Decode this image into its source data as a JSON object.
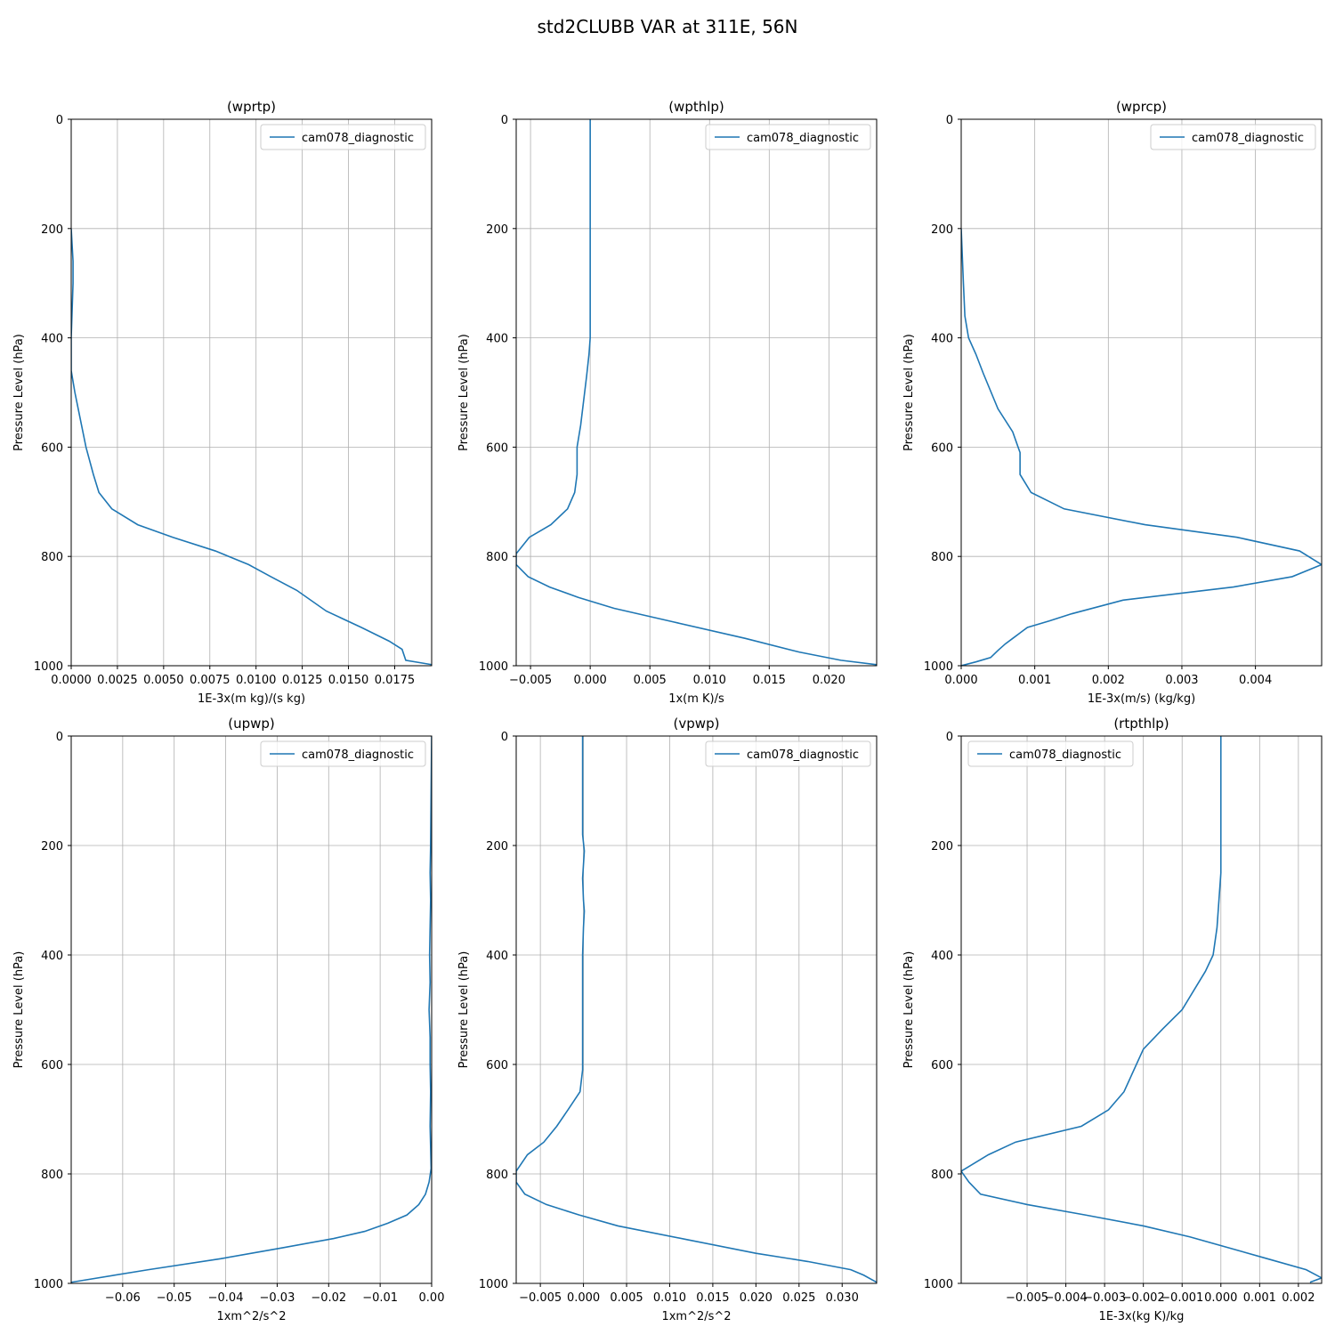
{
  "figure_title": "std2CLUBB VAR at 311E, 56N",
  "series_color": "#1f77b4",
  "chart_data": [
    {
      "type": "line",
      "title": "(wprtp)",
      "xlabel": "1E-3x(m kg)/(s kg)",
      "ylabel": "Pressure Level (hPa)",
      "xlim": [
        0.0,
        0.0195
      ],
      "ylim": [
        1000,
        0
      ],
      "xticks": [
        0.0,
        0.0025,
        0.005,
        0.0075,
        0.01,
        0.0125,
        0.015,
        0.0175
      ],
      "xtick_labels": [
        "0.0000",
        "0.0025",
        "0.0050",
        "0.0075",
        "0.0100",
        "0.0125",
        "0.0150",
        "0.0175"
      ],
      "yticks": [
        0,
        200,
        400,
        600,
        800,
        1000
      ],
      "ytick_labels": [
        "0",
        "200",
        "400",
        "600",
        "800",
        "1000"
      ],
      "grid": true,
      "legend_loc": "upper-right",
      "series": [
        {
          "name": "cam078_diagnostic",
          "x": [
            0.0,
            0.0001,
            0.0001,
            0.0,
            0.0,
            0.0002,
            0.0005,
            0.0008,
            0.0012,
            0.0015,
            0.0022,
            0.0036,
            0.0055,
            0.0078,
            0.0096,
            0.0108,
            0.0122,
            0.0138,
            0.0157,
            0.0172,
            0.0179,
            0.0181,
            0.0195
          ],
          "y": [
            200,
            260,
            300,
            400,
            460,
            500,
            550,
            600,
            650,
            683,
            713,
            742,
            765,
            790,
            815,
            837,
            862,
            900,
            930,
            955,
            970,
            990,
            998
          ]
        }
      ]
    },
    {
      "type": "line",
      "title": "(wpthlp)",
      "xlabel": "1x(m K)/s",
      "ylabel": "Pressure Level (hPa)",
      "xlim": [
        -0.0062,
        0.024
      ],
      "ylim": [
        1000,
        0
      ],
      "xticks": [
        -0.005,
        0.0,
        0.005,
        0.01,
        0.015,
        0.02
      ],
      "xtick_labels": [
        "−0.005",
        "0.000",
        "0.005",
        "0.010",
        "0.015",
        "0.020"
      ],
      "yticks": [
        0,
        200,
        400,
        600,
        800,
        1000
      ],
      "ytick_labels": [
        "0",
        "200",
        "400",
        "600",
        "800",
        "1000"
      ],
      "grid": true,
      "legend_loc": "upper-right",
      "series": [
        {
          "name": "cam078_diagnostic",
          "x": [
            0.0,
            0.0,
            0.0,
            0.0,
            -0.0001,
            -0.0003,
            -0.0008,
            -0.0011,
            -0.0011,
            -0.0013,
            -0.0019,
            -0.0033,
            -0.0051,
            -0.0062,
            -0.0062,
            -0.0052,
            -0.0034,
            -0.001,
            0.002,
            0.007,
            0.013,
            0.0175,
            0.021,
            0.024
          ],
          "y": [
            0,
            10,
            200,
            400,
            430,
            470,
            560,
            600,
            650,
            683,
            713,
            742,
            765,
            795,
            815,
            837,
            856,
            875,
            895,
            920,
            950,
            975,
            990,
            998
          ]
        }
      ]
    },
    {
      "type": "line",
      "title": "(wprcp)",
      "xlabel": "1E-3x(m/s) (kg/kg)",
      "ylabel": "Pressure Level (hPa)",
      "xlim": [
        0.0,
        0.0049
      ],
      "ylim": [
        1000,
        0
      ],
      "xticks": [
        0.0,
        0.001,
        0.002,
        0.003,
        0.004
      ],
      "xtick_labels": [
        "0.000",
        "0.001",
        "0.002",
        "0.003",
        "0.004"
      ],
      "yticks": [
        0,
        200,
        400,
        600,
        800,
        1000
      ],
      "ytick_labels": [
        "0",
        "200",
        "400",
        "600",
        "800",
        "1000"
      ],
      "grid": true,
      "legend_loc": "upper-right",
      "series": [
        {
          "name": "cam078_diagnostic",
          "x": [
            0.0,
            3e-05,
            5e-05,
            0.0001,
            0.0002,
            0.0003,
            0.0005,
            0.0007,
            0.0008,
            0.0008,
            0.00095,
            0.0014,
            0.0025,
            0.00375,
            0.0046,
            0.0049,
            0.0045,
            0.0037,
            0.0022,
            0.0015,
            0.0012,
            0.0009,
            0.0008,
            0.0007,
            0.0006,
            0.0005,
            0.0004,
            0.0002,
            0.0
          ],
          "y": [
            200,
            300,
            360,
            400,
            430,
            465,
            530,
            572,
            610,
            650,
            683,
            713,
            742,
            765,
            790,
            815,
            837,
            856,
            880,
            905,
            918,
            930,
            940,
            950,
            960,
            972,
            985,
            993,
            1000
          ]
        }
      ]
    },
    {
      "type": "line",
      "title": "(upwp)",
      "xlabel": "1xm^2/s^2",
      "ylabel": "Pressure Level (hPa)",
      "xlim": [
        -0.07,
        0.0
      ],
      "ylim": [
        1000,
        0
      ],
      "xticks": [
        -0.06,
        -0.05,
        -0.04,
        -0.03,
        -0.02,
        -0.01,
        0.0
      ],
      "xtick_labels": [
        "−0.06",
        "−0.05",
        "−0.04",
        "−0.03",
        "−0.02",
        "−0.01",
        "0.00"
      ],
      "yticks": [
        0,
        200,
        400,
        600,
        800,
        1000
      ],
      "ytick_labels": [
        "0",
        "200",
        "400",
        "600",
        "800",
        "1000"
      ],
      "grid": true,
      "legend_loc": "upper-right",
      "series": [
        {
          "name": "cam078_diagnostic",
          "x": [
            0.0,
            -0.0001,
            -0.0002,
            -0.0003,
            -0.0002,
            -0.0004,
            -0.0003,
            -0.0005,
            -0.0003,
            -0.0003,
            -0.0002,
            -0.0003,
            -0.0001,
            -0.0005,
            -0.0012,
            -0.0025,
            -0.0048,
            -0.0085,
            -0.013,
            -0.019,
            -0.029,
            -0.041,
            -0.055,
            -0.07
          ],
          "y": [
            0,
            100,
            200,
            250,
            300,
            400,
            450,
            500,
            550,
            600,
            650,
            713,
            790,
            815,
            837,
            856,
            875,
            890,
            905,
            918,
            935,
            955,
            975,
            998
          ]
        }
      ]
    },
    {
      "type": "line",
      "title": "(vpwp)",
      "xlabel": "1xm^2/s^2",
      "ylabel": "Pressure Level (hPa)",
      "xlim": [
        -0.0078,
        0.034
      ],
      "ylim": [
        1000,
        0
      ],
      "xticks": [
        -0.005,
        0.0,
        0.005,
        0.01,
        0.015,
        0.02,
        0.025,
        0.03
      ],
      "xtick_labels": [
        "−0.005",
        "0.000",
        "0.005",
        "0.010",
        "0.015",
        "0.020",
        "0.025",
        "0.030"
      ],
      "yticks": [
        0,
        200,
        400,
        600,
        800,
        1000
      ],
      "ytick_labels": [
        "0",
        "200",
        "400",
        "600",
        "800",
        "1000"
      ],
      "grid": true,
      "legend_loc": "upper-right",
      "series": [
        {
          "name": "cam078_diagnostic",
          "x": [
            -0.0001,
            -0.0001,
            -0.0001,
            0.0001,
            -0.0001,
            0.0,
            0.0001,
            0.0,
            -0.0001,
            -0.0001,
            -0.0001,
            -0.0001,
            -0.0004,
            -0.0018,
            -0.0031,
            -0.0046,
            -0.0065,
            -0.0078,
            -0.0078,
            -0.0068,
            -0.0043,
            -0.0005,
            0.004,
            0.012,
            0.02,
            0.026,
            0.031,
            0.0325,
            0.034
          ],
          "y": [
            0,
            100,
            180,
            210,
            260,
            300,
            320,
            350,
            400,
            500,
            575,
            610,
            650,
            683,
            713,
            742,
            765,
            795,
            815,
            837,
            856,
            875,
            895,
            920,
            945,
            960,
            975,
            985,
            998
          ]
        }
      ]
    },
    {
      "type": "line",
      "title": "(rtpthlp)",
      "xlabel": "1E-3x(kg K)/kg",
      "ylabel": "Pressure Level (hPa)",
      "xlim": [
        -0.0067,
        0.0026
      ],
      "ylim": [
        1000,
        0
      ],
      "xticks": [
        -0.005,
        -0.004,
        -0.003,
        -0.002,
        -0.001,
        0.0,
        0.001,
        0.002
      ],
      "xtick_labels": [
        "−0.005",
        "−0.004",
        "−0.003",
        "−0.002",
        "−0.001",
        "0.000",
        "0.001",
        "0.002"
      ],
      "yticks": [
        0,
        200,
        400,
        600,
        800,
        1000
      ],
      "ytick_labels": [
        "0",
        "200",
        "400",
        "600",
        "800",
        "1000"
      ],
      "grid": true,
      "legend_loc": "upper-left",
      "series": [
        {
          "name": "cam078_diagnostic",
          "x": [
            0.0,
            0.0,
            -0.0001,
            -0.0002,
            -0.0004,
            -0.0007,
            -0.001,
            -0.0015,
            -0.002,
            -0.0025,
            -0.0029,
            -0.0036,
            -0.0053,
            -0.006,
            -0.0067,
            -0.0065,
            -0.0062,
            -0.005,
            -0.0035,
            -0.002,
            -0.0008,
            0.0002,
            0.0012,
            0.0022,
            0.0026,
            0.0023
          ],
          "y": [
            0,
            250,
            350,
            400,
            430,
            465,
            500,
            535,
            572,
            650,
            683,
            713,
            742,
            765,
            795,
            815,
            837,
            856,
            875,
            895,
            915,
            935,
            955,
            975,
            990,
            998
          ]
        }
      ]
    }
  ]
}
